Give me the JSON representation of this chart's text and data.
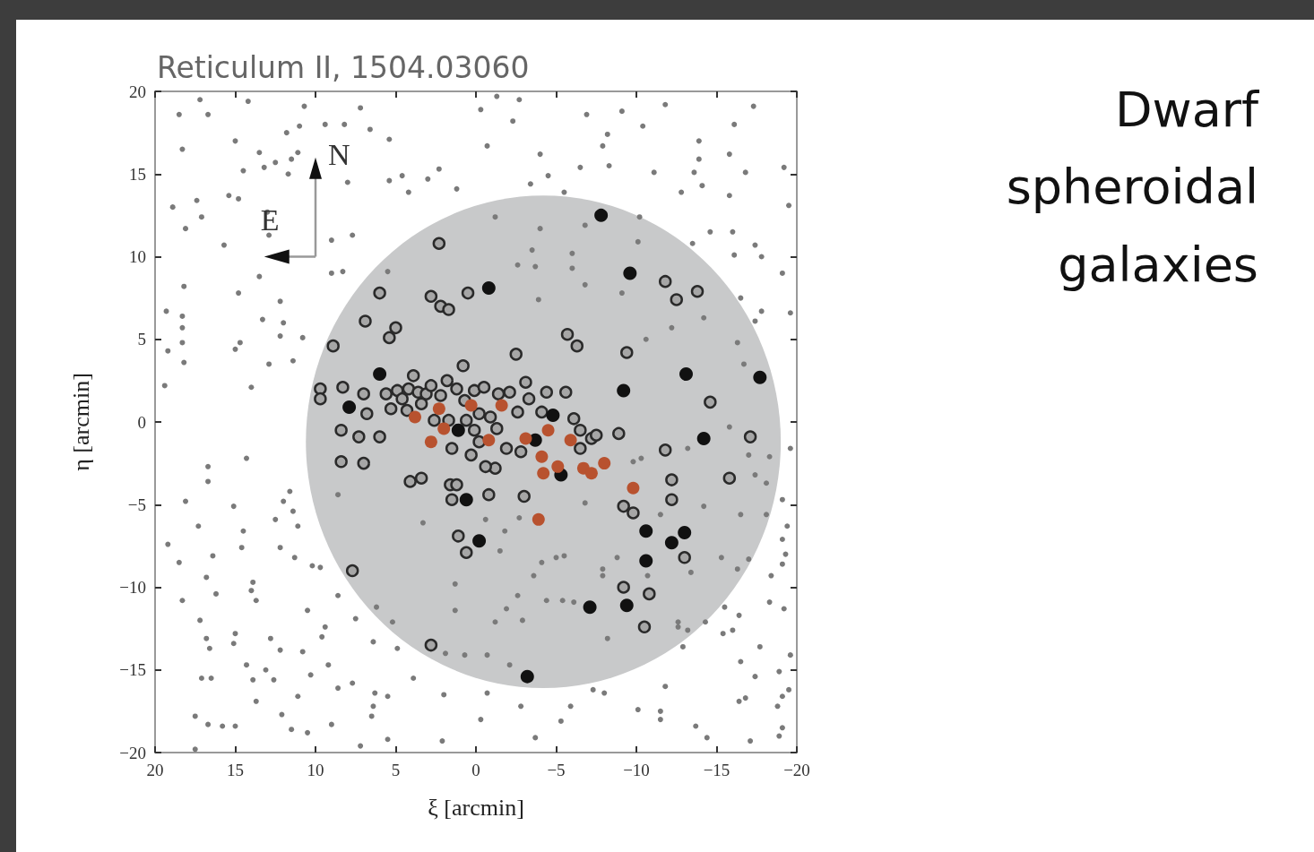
{
  "chart_data": {
    "type": "scatter",
    "title": "Reticulum II, 1504.03060",
    "subtitle": "Dwarf spheroidal galaxies",
    "xlabel": "ξ [arcmin]",
    "ylabel": "η [arcmin]",
    "annotations": [
      "N",
      "E"
    ],
    "marker": "circle",
    "xlim": [
      20,
      -20
    ],
    "ylim": [
      -20,
      20
    ],
    "xticks": [
      20,
      15,
      10,
      5,
      0,
      {
        "value": -5,
        "label": "−5"
      },
      {
        "value": -10,
        "label": "−10"
      },
      {
        "value": -15,
        "label": "−15"
      },
      {
        "value": -20,
        "label": "−20"
      }
    ],
    "yticks": [
      {
        "value": -20,
        "label": "−20"
      },
      {
        "value": -15,
        "label": "−15"
      },
      {
        "value": -10,
        "label": "−10"
      },
      {
        "value": -5,
        "label": "−5"
      },
      0,
      5,
      10,
      15,
      20
    ],
    "series": [
      {
        "color": "#7a7a7a",
        "x": [
          17.2,
          14.2,
          18.5,
          16.7,
          10.7,
          7.2,
          11.0,
          9.4,
          8.2,
          6.6,
          11.8,
          15.0,
          5.4,
          18.3,
          13.5,
          11.1,
          12.5,
          11.5,
          14.5,
          13.2,
          11.7,
          8.0,
          5.4,
          4.6,
          3.0,
          2.3,
          1.2,
          4.2,
          17.4,
          15.4,
          14.8,
          18.9,
          17.1,
          13.0,
          18.1,
          12.9,
          9.0,
          7.7,
          15.7,
          9.0,
          8.3,
          5.5,
          13.5,
          18.2,
          14.8,
          12.2,
          19.3,
          18.3,
          13.3,
          12.0,
          18.3,
          12.2,
          10.8,
          18.3,
          14.7,
          19.2,
          15.0,
          18.2,
          12.9,
          11.4,
          19.4,
          14.0,
          -1.3,
          -2.7,
          -11.8,
          -17.3,
          -0.3,
          -6.9,
          -9.1,
          -2.3,
          -16.1,
          -10.4,
          -8.2,
          -13.9,
          -0.7,
          -7.9,
          -4.0,
          -15.8,
          -13.9,
          -6.5,
          -8.3,
          -11.1,
          -13.6,
          -16.8,
          -19.2,
          -4.5,
          -3.4,
          -14.1,
          -12.8,
          -15.8,
          -19.5,
          -5.5,
          -14.6,
          -16.0,
          -17.4,
          -13.5,
          -16.1,
          -17.8,
          -19.1,
          -16.5,
          -17.8,
          -19.6,
          -1.2,
          -4.0,
          -6.8,
          -10.2,
          -10.1,
          -3.5,
          -6.0,
          -2.6,
          -3.7,
          -6.0,
          -6.8,
          -3.9,
          -9.1,
          -12.2,
          -14.2,
          -17.4,
          -16.3,
          -10.6,
          -16.7,
          16.7,
          16.7,
          14.3,
          18.1,
          15.1,
          11.6,
          12.0,
          11.4,
          12.5,
          11.1,
          17.3,
          14.5,
          19.2,
          16.4,
          14.6,
          12.2,
          11.3,
          18.5,
          10.2,
          9.7,
          16.8,
          13.9,
          18.3,
          16.2,
          14.0,
          13.7,
          8.6,
          10.5,
          17.2,
          16.8,
          15.0,
          16.6,
          15.1,
          12.8,
          12.2,
          9.4,
          9.6,
          7.5,
          10.8,
          6.4,
          4.9,
          14.3,
          13.1,
          9.2,
          17.1,
          16.5,
          13.9,
          12.6,
          10.3,
          7.7,
          3.9,
          13.7,
          11.1,
          8.6,
          6.3,
          5.5,
          2.0,
          6.4,
          17.5,
          12.1,
          6.5,
          16.7,
          15.8,
          15.0,
          9.0,
          11.5,
          10.5,
          5.5,
          2.1,
          17.5,
          7.2,
          8.6,
          3.3,
          1.3,
          1.3,
          6.2,
          5.2,
          1.9,
          0.7,
          -15.8,
          -13.2,
          -17.0,
          -18.3,
          -19.6,
          -17.4,
          -18.1,
          -19.1,
          -14.2,
          -16.5,
          -18.1,
          -19.4,
          -19.1,
          -15.3,
          -17.0,
          -19.3,
          -19.1,
          -16.3,
          -18.4,
          -18.3,
          -19.2,
          -15.5,
          -16.4,
          -14.3,
          -12.6,
          -13.2,
          -15.4,
          -16.0,
          -12.9,
          -17.7,
          -19.6,
          -16.5,
          -17.4,
          -18.9,
          -19.5,
          -16.4,
          -16.8,
          -18.8,
          -19.1,
          -11.8,
          -10.1,
          -11.5,
          -11.5,
          -13.7,
          -19.1,
          -18.9,
          -17.1,
          -14.4,
          -7.3,
          -8.0,
          -5.9,
          -2.8,
          -0.7,
          -0.3,
          -5.3,
          -3.7,
          -9.8,
          -10.3,
          -6.8,
          -11.5,
          -0.6,
          -2.7,
          -1.8,
          -1.5,
          -4.1,
          -5.0,
          -5.5,
          -8.8,
          -7.9,
          -7.9,
          -10.7,
          -13.4,
          -3.6,
          -2.6,
          -4.4,
          -5.4,
          -6.1,
          -1.9,
          -2.9,
          -1.2,
          -8.2,
          -0.7,
          -2.1,
          -12.6
        ],
        "values": [
          19.5,
          19.4,
          18.6,
          18.6,
          19.1,
          19.0,
          17.9,
          18.0,
          18.0,
          17.7,
          17.5,
          17.0,
          17.1,
          16.5,
          16.3,
          16.3,
          15.7,
          15.9,
          15.2,
          15.4,
          15.0,
          14.5,
          14.6,
          14.9,
          14.7,
          15.3,
          14.1,
          13.9,
          13.4,
          13.7,
          13.5,
          13.0,
          12.4,
          12.7,
          11.7,
          11.3,
          11.0,
          11.3,
          10.7,
          9.0,
          9.1,
          9.1,
          8.8,
          8.2,
          7.8,
          7.3,
          6.7,
          6.4,
          6.2,
          6.0,
          5.7,
          5.2,
          5.1,
          4.8,
          4.8,
          4.3,
          4.4,
          3.6,
          3.5,
          3.7,
          2.2,
          2.1,
          19.7,
          19.5,
          19.2,
          19.1,
          18.9,
          18.6,
          18.8,
          18.2,
          18.0,
          17.9,
          17.4,
          17.0,
          16.7,
          16.7,
          16.2,
          16.2,
          15.9,
          15.4,
          15.5,
          15.1,
          15.1,
          15.1,
          15.4,
          14.9,
          14.4,
          14.3,
          13.9,
          13.7,
          13.1,
          13.9,
          11.5,
          11.5,
          10.7,
          10.8,
          10.1,
          10.0,
          9.0,
          7.5,
          6.7,
          6.6,
          12.4,
          11.7,
          11.9,
          12.4,
          10.9,
          10.4,
          10.2,
          9.5,
          9.4,
          9.3,
          8.3,
          7.4,
          7.8,
          5.7,
          6.3,
          6.1,
          4.8,
          5.0,
          3.5,
          -2.7,
          -3.6,
          -2.2,
          -4.8,
          -5.1,
          -4.2,
          -4.8,
          -5.4,
          -5.9,
          -6.3,
          -6.3,
          -6.6,
          -7.4,
          -8.1,
          -7.6,
          -7.6,
          -8.2,
          -8.5,
          -8.7,
          -8.8,
          -9.4,
          -9.7,
          -10.8,
          -10.4,
          -10.2,
          -10.8,
          -10.5,
          -11.4,
          -12.0,
          -13.1,
          -12.8,
          -13.7,
          -13.4,
          -13.1,
          -13.8,
          -12.4,
          -13.0,
          -11.9,
          -13.9,
          -13.3,
          -13.7,
          -14.7,
          -15.0,
          -14.7,
          -15.5,
          -15.5,
          -15.6,
          -15.6,
          -15.3,
          -15.8,
          -15.5,
          -16.9,
          -16.6,
          -16.1,
          -16.4,
          -16.6,
          -16.5,
          -17.2,
          -17.8,
          -17.7,
          -17.8,
          -18.3,
          -18.4,
          -18.4,
          -18.3,
          -18.6,
          -18.8,
          -19.2,
          -19.3,
          -19.8,
          -19.6,
          -4.4,
          -6.1,
          -9.8,
          -11.4,
          -11.2,
          -12.1,
          -14.0,
          -14.1,
          -0.3,
          -1.6,
          -2.0,
          -2.1,
          -1.6,
          -3.2,
          -3.7,
          -4.7,
          -5.1,
          -5.6,
          -5.6,
          -6.3,
          -7.1,
          -8.2,
          -8.3,
          -8.0,
          -8.6,
          -8.9,
          -9.3,
          -10.9,
          -11.3,
          -11.2,
          -11.7,
          -12.1,
          -12.1,
          -12.6,
          -12.8,
          -12.6,
          -13.6,
          -13.6,
          -14.1,
          -14.5,
          -15.4,
          -15.1,
          -16.2,
          -16.9,
          -16.7,
          -17.2,
          -16.6,
          -16.0,
          -17.4,
          -17.5,
          -18.0,
          -18.4,
          -18.5,
          -19.0,
          -19.3,
          -19.1,
          -16.2,
          -16.4,
          -17.2,
          -17.2,
          -16.4,
          -18.0,
          -18.1,
          -19.1,
          -2.4,
          -2.2,
          -4.9,
          -5.6,
          -5.9,
          -5.8,
          -6.6,
          -7.8,
          -8.5,
          -8.2,
          -8.1,
          -8.2,
          -8.9,
          -9.3,
          -9.3,
          -9.1,
          -9.3,
          -10.5,
          -10.8,
          -10.8,
          -10.9,
          -11.3,
          -12.0,
          -12.1,
          -13.1,
          -14.1,
          -14.7,
          -12.4
        ]
      },
      {
        "color": "#a6a6a6",
        "x": [
          2.3,
          6.0,
          6.9,
          5.4,
          5.0,
          2.8,
          2.2,
          1.7,
          0.5,
          8.9,
          9.7,
          8.3,
          9.7,
          7.0,
          6.8,
          8.4,
          7.3,
          8.4,
          7.0,
          6.0,
          4.9,
          4.6,
          4.2,
          3.9,
          3.6,
          3.4,
          3.1,
          4.3,
          5.3,
          5.6,
          2.8,
          2.2,
          1.8,
          1.2,
          0.8,
          0.7,
          0.1,
          -0.5,
          -0.2,
          -0.9,
          -1.3,
          0.6,
          1.7,
          2.6,
          0.1,
          -2.5,
          -3.1,
          -3.3,
          -4.4,
          -4.1,
          -2.6,
          -2.1,
          -1.4,
          -5.6,
          -6.1,
          -2.8,
          -1.9,
          -1.2,
          -0.6,
          0.3,
          1.5,
          -0.2,
          -5.7,
          -6.3,
          -9.4,
          -6.5,
          -7.2,
          -6.5,
          -7.5,
          -8.9,
          1.6,
          1.2,
          1.5,
          -0.8,
          -3.0,
          4.1,
          3.4,
          1.1,
          0.6,
          7.7,
          2.8,
          -9.2,
          -9.8,
          -11.8,
          -12.2,
          -12.2,
          -13.0,
          -14.6,
          -17.1,
          -15.8,
          -11.8,
          -12.5,
          -13.8,
          -9.2,
          -10.8,
          -10.5
        ],
        "values": [
          10.8,
          7.8,
          6.1,
          5.1,
          5.7,
          7.6,
          7.0,
          6.8,
          7.8,
          4.6,
          2.0,
          2.1,
          1.4,
          1.7,
          0.5,
          -0.5,
          -0.9,
          -2.4,
          -2.5,
          -0.9,
          1.9,
          1.4,
          2.0,
          2.8,
          1.8,
          1.1,
          1.7,
          0.7,
          0.8,
          1.7,
          2.2,
          1.6,
          2.5,
          2.0,
          3.4,
          1.3,
          1.9,
          2.1,
          0.5,
          0.3,
          -0.4,
          0.1,
          0.1,
          0.1,
          -0.5,
          4.1,
          2.4,
          1.4,
          1.8,
          0.6,
          0.6,
          1.8,
          1.7,
          1.8,
          0.2,
          -1.8,
          -1.6,
          -2.8,
          -2.7,
          -2.0,
          -1.6,
          -1.2,
          5.3,
          4.6,
          4.2,
          -0.5,
          -1.0,
          -1.6,
          -0.8,
          -0.7,
          -3.8,
          -3.8,
          -4.7,
          -4.4,
          -4.5,
          -3.6,
          -3.4,
          -6.9,
          -7.9,
          -9.0,
          -13.5,
          -5.1,
          -5.5,
          -1.7,
          -3.5,
          -4.7,
          -8.2,
          1.2,
          -0.9,
          -3.4,
          8.5,
          7.4,
          7.9,
          -10.0,
          -10.4,
          -12.4
        ]
      },
      {
        "color": "#111111",
        "x": [
          -7.8,
          -9.6,
          -0.8,
          6.0,
          7.9,
          1.1,
          -4.8,
          -3.7,
          -5.3,
          -9.2,
          -13.1,
          -17.7,
          -14.2,
          0.6,
          -0.2,
          -10.6,
          -12.2,
          -13.0,
          -10.6,
          -7.1,
          -9.4,
          -3.2
        ],
        "values": [
          12.5,
          9.0,
          8.1,
          2.9,
          0.9,
          -0.5,
          0.4,
          -1.1,
          -3.2,
          1.9,
          2.9,
          2.7,
          -1.0,
          -4.7,
          -7.2,
          -6.6,
          -7.3,
          -6.7,
          -8.4,
          -11.2,
          -11.1,
          -15.4
        ]
      },
      {
        "color": "#b8522f",
        "x": [
          3.8,
          2.3,
          2.8,
          2.0,
          0.3,
          -0.8,
          -1.6,
          -3.1,
          -4.5,
          -5.9,
          -4.1,
          -4.2,
          -5.1,
          -6.7,
          -7.2,
          -8.0,
          -9.8,
          -3.9
        ],
        "values": [
          0.3,
          0.8,
          -1.2,
          -0.4,
          1.0,
          -1.1,
          1.0,
          -1.0,
          -0.5,
          -1.1,
          -2.1,
          -3.1,
          -2.7,
          -2.8,
          -3.1,
          -2.5,
          -4.0,
          -5.9
        ]
      }
    ]
  }
}
